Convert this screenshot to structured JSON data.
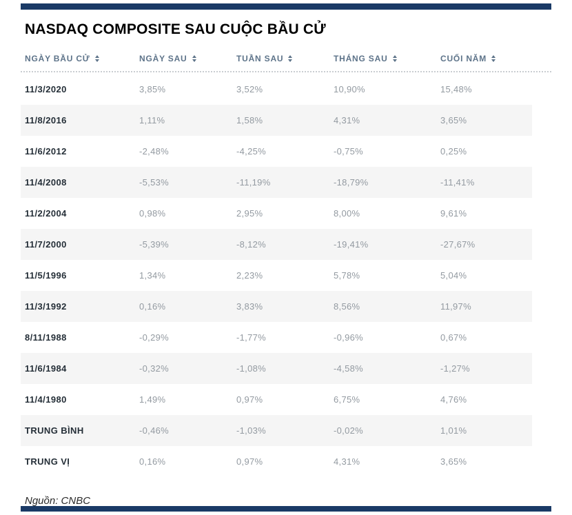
{
  "accent_color": "#1a3a66",
  "stripe_color": "#f5f5f5",
  "header_color": "#5d7389",
  "value_color": "#939aa1",
  "chart_data": {
    "type": "table",
    "title": "NASDAQ COMPOSITE SAU CUỘC BẦU CỬ",
    "columns": [
      "NGÀY BẦU CỬ",
      "NGÀY SAU",
      "TUẦN SAU",
      "THÁNG SAU",
      "CUỐI NĂM"
    ],
    "rows": [
      {
        "label": "11/3/2020",
        "values": [
          "3,85%",
          "3,52%",
          "10,90%",
          "15,48%"
        ]
      },
      {
        "label": "11/8/2016",
        "values": [
          "1,11%",
          "1,58%",
          "4,31%",
          "3,65%"
        ]
      },
      {
        "label": "11/6/2012",
        "values": [
          "-2,48%",
          "-4,25%",
          "-0,75%",
          "0,25%"
        ]
      },
      {
        "label": "11/4/2008",
        "values": [
          "-5,53%",
          "-11,19%",
          "-18,79%",
          "-11,41%"
        ]
      },
      {
        "label": "11/2/2004",
        "values": [
          "0,98%",
          "2,95%",
          "8,00%",
          "9,61%"
        ]
      },
      {
        "label": "11/7/2000",
        "values": [
          "-5,39%",
          "-8,12%",
          "-19,41%",
          "-27,67%"
        ]
      },
      {
        "label": "11/5/1996",
        "values": [
          "1,34%",
          "2,23%",
          "5,78%",
          "5,04%"
        ]
      },
      {
        "label": "11/3/1992",
        "values": [
          "0,16%",
          "3,83%",
          "8,56%",
          "11,97%"
        ]
      },
      {
        "label": "8/11/1988",
        "values": [
          "-0,29%",
          "-1,77%",
          "-0,96%",
          "0,67%"
        ]
      },
      {
        "label": "11/6/1984",
        "values": [
          "-0,32%",
          "-1,08%",
          "-4,58%",
          "-1,27%"
        ]
      },
      {
        "label": "11/4/1980",
        "values": [
          "1,49%",
          "0,97%",
          "6,75%",
          "4,76%"
        ]
      },
      {
        "label": "TRUNG BÌNH",
        "values": [
          "-0,46%",
          "-1,03%",
          "-0,02%",
          "1,01%"
        ]
      },
      {
        "label": "TRUNG VỊ",
        "values": [
          "0,16%",
          "0,97%",
          "4,31%",
          "3,65%"
        ]
      }
    ],
    "source": "Nguồn: CNBC"
  }
}
